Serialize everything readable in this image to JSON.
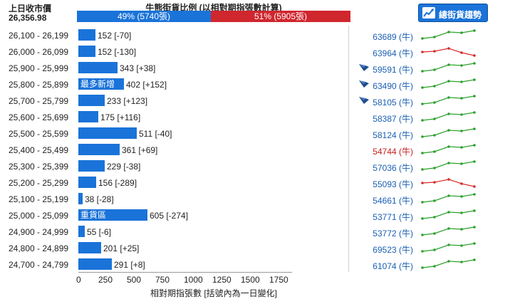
{
  "header": {
    "prev_close_label": "上日收市價",
    "prev_close_value": "26,356.98",
    "ratio_title": "牛熊街貨比例 (以相對期指張數計算)",
    "bull_pct": 49,
    "bull_label": "49% (5740張)",
    "bear_label": "51% (5905張)",
    "trend_button_label": "總街貨趨勢",
    "bull_color": "#1a73d9",
    "bear_color": "#d0262e"
  },
  "chart_data": {
    "type": "bar",
    "orientation": "horizontal",
    "xlabel": "相對期指張數 [括號內為一日變化]",
    "xlim": [
      0,
      1800
    ],
    "xticks": [
      "0",
      "250",
      "500",
      "750",
      "1000",
      "1250",
      "1500",
      "1750"
    ],
    "categories": [
      "26,100 - 26,199",
      "26,000 - 26,099",
      "25,900 - 25,999",
      "25,800 - 25,899",
      "25,700 - 25,799",
      "25,600 - 25,699",
      "25,500 - 25,599",
      "25,400 - 25,499",
      "25,300 - 25,399",
      "25,200 - 25,299",
      "25,100 - 25,199",
      "25,000 - 25,099",
      "24,900 - 24,999",
      "24,800 - 24,899",
      "24,700 - 24,799"
    ],
    "values": [
      152,
      152,
      343,
      402,
      233,
      175,
      511,
      361,
      229,
      156,
      38,
      605,
      55,
      201,
      291
    ],
    "value_labels": [
      "152 [-70]",
      "152 [-130]",
      "343 [+38]",
      "402 [+152]",
      "233 [+123]",
      "175 [+116]",
      "511 [-40]",
      "361 [+69]",
      "229 [-38]",
      "156 [-289]",
      "38 [-28]",
      "605 [-274]",
      "55 [-6]",
      "201 [+25]",
      "291 [+8]"
    ],
    "bar_tags": [
      "",
      "",
      "",
      "最多新增",
      "",
      "",
      "",
      "",
      "",
      "",
      "",
      "重貨區",
      "",
      "",
      ""
    ]
  },
  "rows": [
    {
      "count": "63689 (牛)",
      "count_red": false,
      "flag": false,
      "trend": "up"
    },
    {
      "count": "63964 (牛)",
      "count_red": false,
      "flag": false,
      "trend": "down"
    },
    {
      "count": "59591 (牛)",
      "count_red": false,
      "flag": true,
      "trend": "up"
    },
    {
      "count": "63490 (牛)",
      "count_red": false,
      "flag": true,
      "trend": "up"
    },
    {
      "count": "58105 (牛)",
      "count_red": false,
      "flag": true,
      "trend": "up"
    },
    {
      "count": "58387 (牛)",
      "count_red": false,
      "flag": false,
      "trend": "up"
    },
    {
      "count": "58124 (牛)",
      "count_red": false,
      "flag": false,
      "trend": "up"
    },
    {
      "count": "54744 (牛)",
      "count_red": true,
      "flag": false,
      "trend": "up"
    },
    {
      "count": "57036 (牛)",
      "count_red": false,
      "flag": false,
      "trend": "up"
    },
    {
      "count": "55093 (牛)",
      "count_red": false,
      "flag": false,
      "trend": "down"
    },
    {
      "count": "54661 (牛)",
      "count_red": false,
      "flag": false,
      "trend": "up"
    },
    {
      "count": "53771 (牛)",
      "count_red": false,
      "flag": false,
      "trend": "up"
    },
    {
      "count": "53772 (牛)",
      "count_red": false,
      "flag": false,
      "trend": "up"
    },
    {
      "count": "69523 (牛)",
      "count_red": false,
      "flag": false,
      "trend": "up"
    },
    {
      "count": "61074 (牛)",
      "count_red": false,
      "flag": false,
      "trend": "up"
    }
  ],
  "icons": {
    "trend_button_icon": "line-chart-icon",
    "flag_icon": "flag-icon"
  },
  "colors": {
    "spark_up": "#2da12d",
    "spark_down": "#d62c2c",
    "count_text": "#1a5fb4",
    "count_red": "#c81e1e"
  }
}
